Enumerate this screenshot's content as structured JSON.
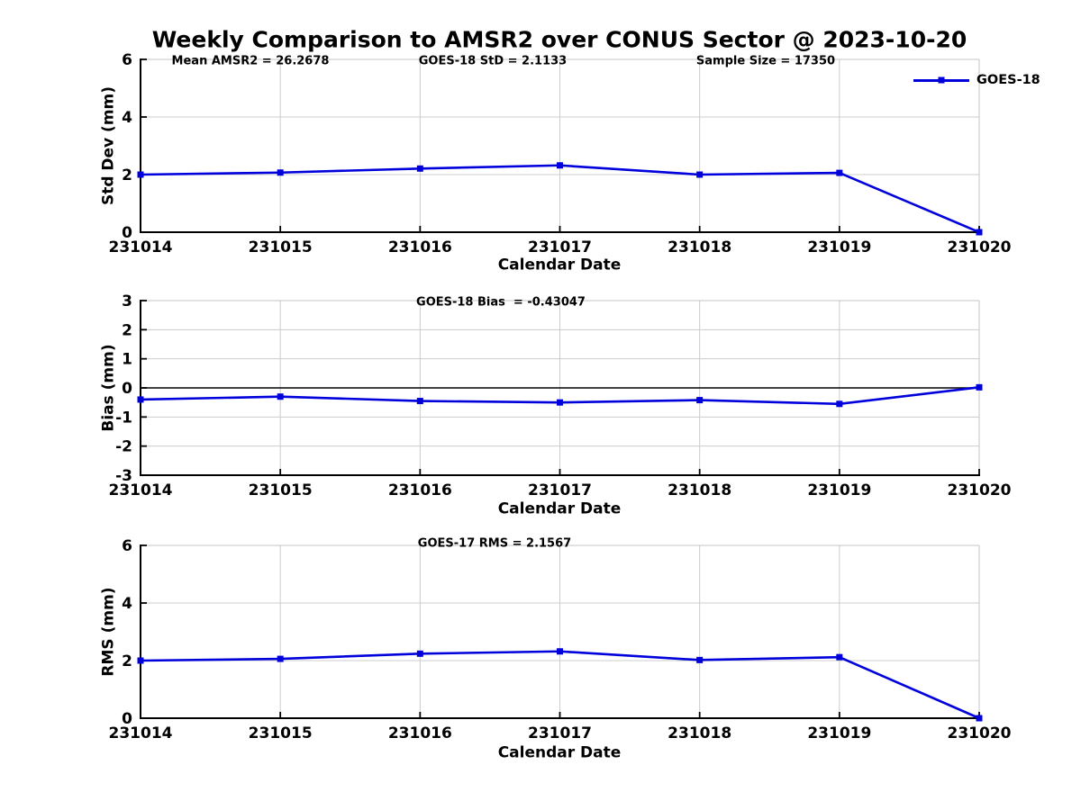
{
  "title": "Weekly Comparison to AMSR2 over CONUS Sector @ 2023-10-20",
  "colors": {
    "series": "#0000dd",
    "grid": "#cccccc",
    "minor_spine": "#c4c4c4",
    "axis": "#000000",
    "text": "#000000",
    "background": "#ffffff"
  },
  "legend": {
    "label": "GOES-18",
    "position": "top-right",
    "marker": "filled-square"
  },
  "xlabel": "Calendar Date",
  "chart_data": [
    {
      "type": "line",
      "name": "stddev",
      "series_name": "GOES-18",
      "annotations": [
        "Mean AMSR2 = 26.2678",
        "GOES-18 StD = 2.1133",
        "Sample Size = 17350"
      ],
      "categories": [
        "231014",
        "231015",
        "231016",
        "231017",
        "231018",
        "231019",
        "231020"
      ],
      "values": [
        2.0,
        2.07,
        2.21,
        2.32,
        2.0,
        2.06,
        0.0
      ],
      "xlabel": "Calendar Date",
      "ylabel": "Std Dev (mm)",
      "ylim": [
        0,
        6
      ],
      "yticks": [
        0,
        2,
        4,
        6
      ],
      "grid": true,
      "zero_line": false,
      "legend_shown": true
    },
    {
      "type": "line",
      "name": "bias",
      "series_name": "GOES-18",
      "annotations": [
        "GOES-18 Bias  = -0.43047"
      ],
      "categories": [
        "231014",
        "231015",
        "231016",
        "231017",
        "231018",
        "231019",
        "231020"
      ],
      "values": [
        -0.4,
        -0.3,
        -0.45,
        -0.5,
        -0.42,
        -0.55,
        0.02
      ],
      "xlabel": "Calendar Date",
      "ylabel": "Bias (mm)",
      "ylim": [
        -3,
        3
      ],
      "yticks": [
        3,
        2,
        1,
        0,
        -1,
        -2,
        -3
      ],
      "grid": true,
      "zero_line": true,
      "legend_shown": false
    },
    {
      "type": "line",
      "name": "rms",
      "series_name": "GOES-18",
      "annotations": [
        "GOES-17 RMS = 2.1567"
      ],
      "categories": [
        "231014",
        "231015",
        "231016",
        "231017",
        "231018",
        "231019",
        "231020"
      ],
      "values": [
        2.0,
        2.06,
        2.24,
        2.32,
        2.02,
        2.12,
        0.0
      ],
      "xlabel": "Calendar Date",
      "ylabel": "RMS (mm)",
      "ylim": [
        0,
        6
      ],
      "yticks": [
        0,
        2,
        4,
        6
      ],
      "grid": true,
      "zero_line": false,
      "legend_shown": false
    }
  ]
}
